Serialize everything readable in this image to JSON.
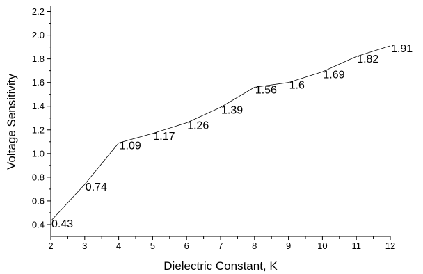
{
  "chart_data": {
    "type": "line",
    "title": "",
    "xlabel": "Dielectric Constant, K",
    "ylabel": "Voltage Sensitivity",
    "xlim": [
      2,
      12
    ],
    "ylim": [
      0.3,
      2.25
    ],
    "x_ticks": [
      2,
      3,
      4,
      5,
      6,
      7,
      8,
      9,
      10,
      11,
      12
    ],
    "x_tick_labels": [
      "2",
      "3",
      "4",
      "5",
      "6",
      "7",
      "8",
      "9",
      "10",
      "11",
      "12"
    ],
    "y_ticks": [
      0.4,
      0.6,
      0.8,
      1.0,
      1.2,
      1.4,
      1.6,
      1.8,
      2.0,
      2.2
    ],
    "y_tick_labels": [
      "0.4",
      "0.6",
      "0.8",
      "1.0",
      "1.2",
      "1.4",
      "1.6",
      "1.8",
      "2.0",
      "2.2"
    ],
    "grid": false,
    "legend": "none",
    "series": [
      {
        "x": [
          2,
          3,
          4,
          5,
          6,
          7,
          8,
          9,
          10,
          11,
          12
        ],
        "values": [
          0.43,
          0.74,
          1.09,
          1.17,
          1.26,
          1.39,
          1.56,
          1.6,
          1.69,
          1.82,
          1.91
        ],
        "data_labels": [
          "0.43",
          "0.74",
          "1.09",
          "1.17",
          "1.26",
          "1.39",
          "1.56",
          "1.6",
          "1.69",
          "1.82",
          "1.91"
        ],
        "color": "#000000"
      }
    ]
  }
}
